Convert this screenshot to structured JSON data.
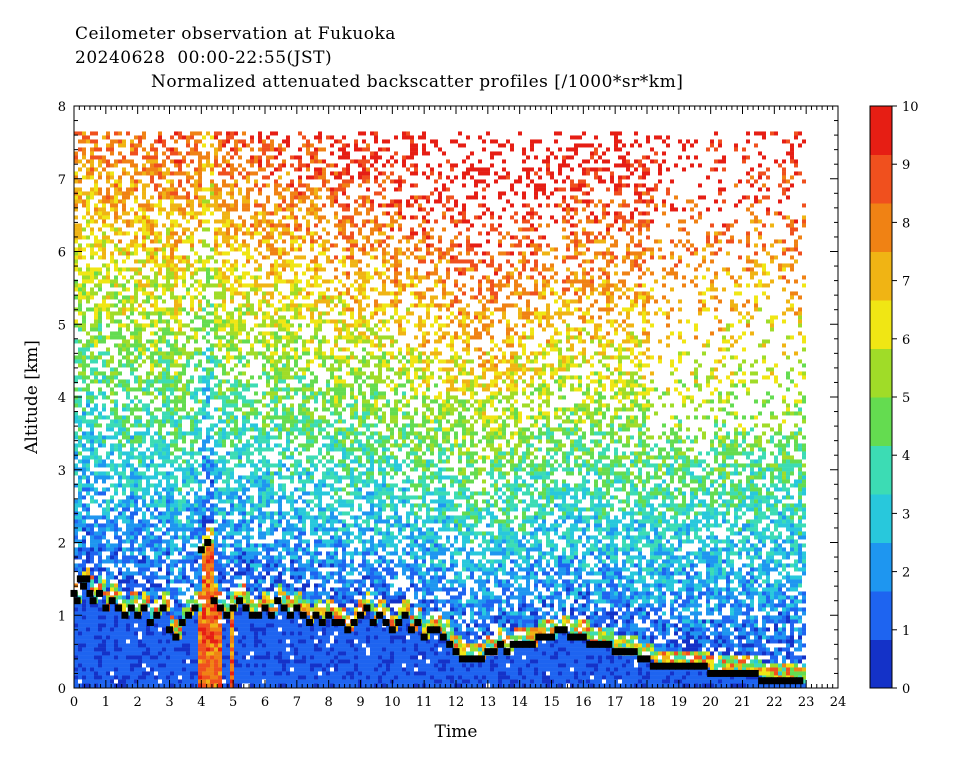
{
  "header": {
    "line1": "Ceilometer observation at Fukuoka",
    "line2": "20240628  00:00-22:55(JST)"
  },
  "chart_data": {
    "type": "heatmap",
    "title": "Normalized attenuated backscatter profiles [/1000*sr*km]",
    "xlabel": "Time",
    "ylabel": "Altitude [km]",
    "xlim": [
      0,
      24
    ],
    "ylim": [
      0,
      8
    ],
    "x_ticks": [
      0,
      1,
      2,
      3,
      4,
      5,
      6,
      7,
      8,
      9,
      10,
      11,
      12,
      13,
      14,
      15,
      16,
      17,
      18,
      19,
      20,
      21,
      22,
      23,
      24
    ],
    "y_ticks": [
      0,
      1,
      2,
      3,
      4,
      5,
      6,
      7,
      8
    ],
    "data_end_hour": 22.92,
    "data_top_km": 7.65,
    "colorbar": {
      "min": 0,
      "max": 10,
      "ticks": [
        0,
        1,
        2,
        3,
        4,
        5,
        6,
        7,
        8,
        9,
        10
      ],
      "colors": [
        "#1432c8",
        "#1e64f0",
        "#1e96f0",
        "#28c8dc",
        "#3cdcb4",
        "#64dc50",
        "#a0dc28",
        "#f0e614",
        "#f0b414",
        "#f08214",
        "#f0501e",
        "#e61e14"
      ]
    },
    "series": [
      {
        "name": "cloud base",
        "x": [
          0.0,
          0.1,
          0.2,
          0.3,
          0.4,
          0.5,
          0.6,
          0.8,
          1.0,
          1.2,
          1.4,
          1.6,
          1.8,
          2.0,
          2.2,
          2.4,
          2.6,
          2.8,
          3.0,
          3.2,
          3.4,
          3.6,
          3.8,
          4.0,
          4.2,
          4.4,
          4.6,
          4.8,
          5.0,
          5.2,
          5.4,
          5.6,
          5.8,
          6.0,
          6.2,
          6.4,
          6.6,
          6.8,
          7.0,
          7.2,
          7.4,
          7.6,
          7.8,
          8.0,
          8.2,
          8.4,
          8.6,
          8.8,
          9.0,
          9.2,
          9.4,
          9.6,
          9.8,
          10.0,
          10.2,
          10.4,
          10.6,
          10.8,
          11.0,
          11.2,
          11.4,
          11.6,
          11.8,
          12.0,
          12.2,
          12.4,
          12.6,
          12.8,
          13.0,
          13.2,
          13.4,
          13.6,
          13.8,
          14.0,
          14.2,
          14.4,
          14.6,
          14.8,
          15.0,
          15.2,
          15.4,
          15.6,
          15.8,
          16.0,
          16.2,
          16.4,
          16.6,
          16.8,
          17.0,
          17.2,
          17.4,
          17.6,
          17.8,
          18.0,
          18.2,
          18.4,
          18.6,
          18.8,
          19.0,
          19.2,
          19.4,
          19.6,
          19.8,
          20.0,
          20.2,
          20.4,
          20.6,
          20.8,
          21.0,
          21.2,
          21.4,
          21.6,
          21.8,
          22.0,
          22.2,
          22.4,
          22.6,
          22.8
        ],
        "y": [
          1.3,
          1.2,
          1.5,
          1.4,
          1.5,
          1.3,
          1.2,
          1.3,
          1.1,
          1.2,
          1.1,
          1.0,
          1.1,
          1.0,
          1.1,
          0.9,
          1.0,
          1.1,
          0.8,
          0.7,
          0.9,
          1.0,
          1.1,
          1.9,
          2.0,
          1.2,
          1.1,
          1.0,
          1.1,
          1.2,
          1.1,
          1.0,
          1.0,
          1.1,
          1.0,
          1.2,
          1.1,
          1.0,
          1.1,
          1.0,
          0.9,
          1.0,
          0.9,
          1.0,
          0.9,
          0.9,
          0.8,
          0.9,
          1.0,
          1.1,
          0.9,
          1.0,
          0.9,
          0.8,
          0.9,
          1.0,
          0.8,
          0.9,
          0.7,
          0.8,
          0.8,
          0.7,
          0.6,
          0.5,
          0.4,
          0.4,
          0.4,
          0.4,
          0.5,
          0.5,
          0.6,
          0.5,
          0.6,
          0.6,
          0.6,
          0.6,
          0.7,
          0.7,
          0.7,
          0.8,
          0.8,
          0.7,
          0.7,
          0.7,
          0.6,
          0.6,
          0.6,
          0.6,
          0.5,
          0.5,
          0.5,
          0.5,
          0.4,
          0.4,
          0.3,
          0.3,
          0.3,
          0.3,
          0.3,
          0.3,
          0.3,
          0.3,
          0.3,
          0.2,
          0.2,
          0.2,
          0.2,
          0.2,
          0.2,
          0.2,
          0.2,
          0.1,
          0.1,
          0.1,
          0.1,
          0.1,
          0.1,
          0.1
        ]
      }
    ]
  }
}
